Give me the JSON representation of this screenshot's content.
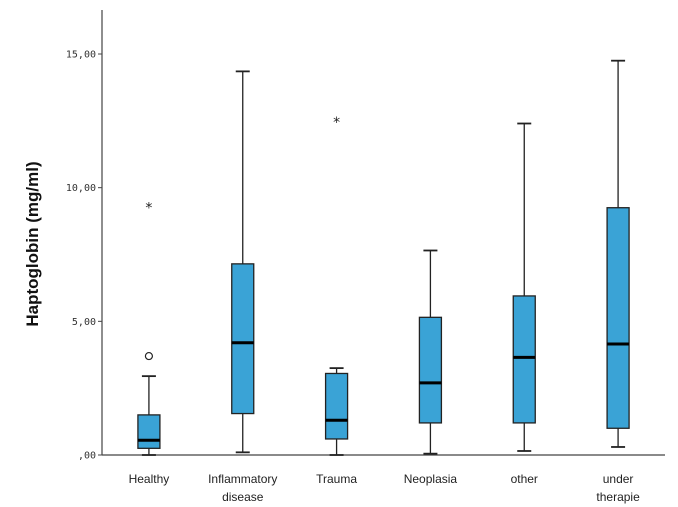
{
  "chart_data": {
    "type": "box",
    "ylabel": "Haptoglobin (mg/ml)",
    "xlabel": "",
    "ylim": [
      0,
      16.5
    ],
    "yticks": [
      {
        "value": 0,
        "label": ",00"
      },
      {
        "value": 5,
        "label": "5,00"
      },
      {
        "value": 10,
        "label": "10,00"
      },
      {
        "value": 15,
        "label": "15,00"
      }
    ],
    "box_color": "#3aa3d6",
    "categories": [
      {
        "label_lines": [
          "Healthy"
        ],
        "whisker_low": 0.0,
        "q1": 0.25,
        "median": 0.55,
        "q3": 1.5,
        "whisker_high": 2.95,
        "outliers": [
          {
            "value": 3.7,
            "marker": "o"
          },
          {
            "value": 9.3,
            "marker": "*"
          }
        ]
      },
      {
        "label_lines": [
          "Inflammatory",
          "disease"
        ],
        "whisker_low": 0.1,
        "q1": 1.55,
        "median": 4.2,
        "q3": 7.15,
        "whisker_high": 14.35,
        "outliers": []
      },
      {
        "label_lines": [
          "Trauma"
        ],
        "whisker_low": 0.0,
        "q1": 0.6,
        "median": 1.3,
        "q3": 3.05,
        "whisker_high": 3.25,
        "outliers": [
          {
            "value": 12.5,
            "marker": "*"
          }
        ]
      },
      {
        "label_lines": [
          "Neoplasia"
        ],
        "whisker_low": 0.05,
        "q1": 1.2,
        "median": 2.7,
        "q3": 5.15,
        "whisker_high": 7.65,
        "outliers": []
      },
      {
        "label_lines": [
          "other"
        ],
        "whisker_low": 0.15,
        "q1": 1.2,
        "median": 3.65,
        "q3": 5.95,
        "whisker_high": 12.4,
        "outliers": []
      },
      {
        "label_lines": [
          "under",
          "therapie"
        ],
        "whisker_low": 0.3,
        "q1": 1.0,
        "median": 4.15,
        "q3": 9.25,
        "whisker_high": 14.75,
        "outliers": []
      }
    ]
  }
}
